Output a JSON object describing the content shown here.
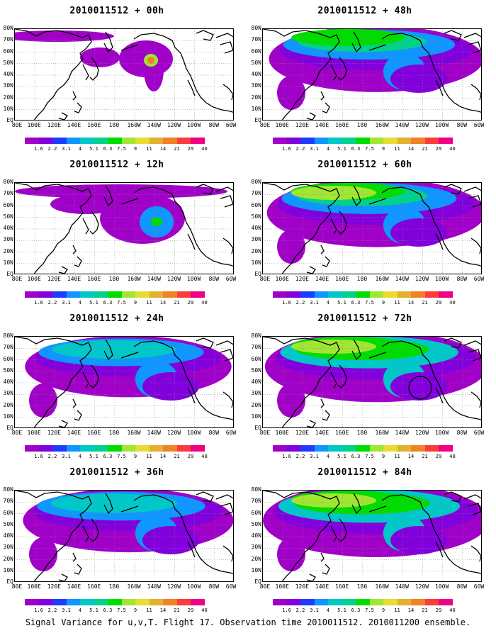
{
  "caption": "Signal Variance for u,v,T. Flight 17. Observation time 2010011512. 2010011200 ensemble.",
  "lat_labels": [
    "80N",
    "70N",
    "60N",
    "50N",
    "40N",
    "30N",
    "20N",
    "10N",
    "EQ"
  ],
  "lon_labels": [
    "80E",
    "100E",
    "120E",
    "140E",
    "160E",
    "180",
    "160W",
    "140W",
    "120W",
    "100W",
    "80W",
    "60W"
  ],
  "colorbar": {
    "levels": [
      "1.6",
      "2.2",
      "3.1",
      "4",
      "5.1",
      "6.3",
      "7.5",
      "9",
      "11",
      "14",
      "21",
      "29",
      "40"
    ],
    "colors": [
      "#a000c8",
      "#8200dc",
      "#1e3cff",
      "#0f96ff",
      "#00c8c8",
      "#00d28c",
      "#00dc00",
      "#a0e632",
      "#e6dc32",
      "#e6af2d",
      "#f08228",
      "#fa3c3c",
      "#f00082"
    ]
  },
  "panels": [
    {
      "title": "2010011512 + 00h",
      "lead": 0
    },
    {
      "title": "2010011512 + 48h",
      "lead": 48
    },
    {
      "title": "2010011512 + 12h",
      "lead": 12
    },
    {
      "title": "2010011512 + 60h",
      "lead": 60
    },
    {
      "title": "2010011512 + 24h",
      "lead": 24
    },
    {
      "title": "2010011512 + 72h",
      "lead": 72
    },
    {
      "title": "2010011512 + 36h",
      "lead": 36
    },
    {
      "title": "2010011512 + 84h",
      "lead": 84
    }
  ]
}
